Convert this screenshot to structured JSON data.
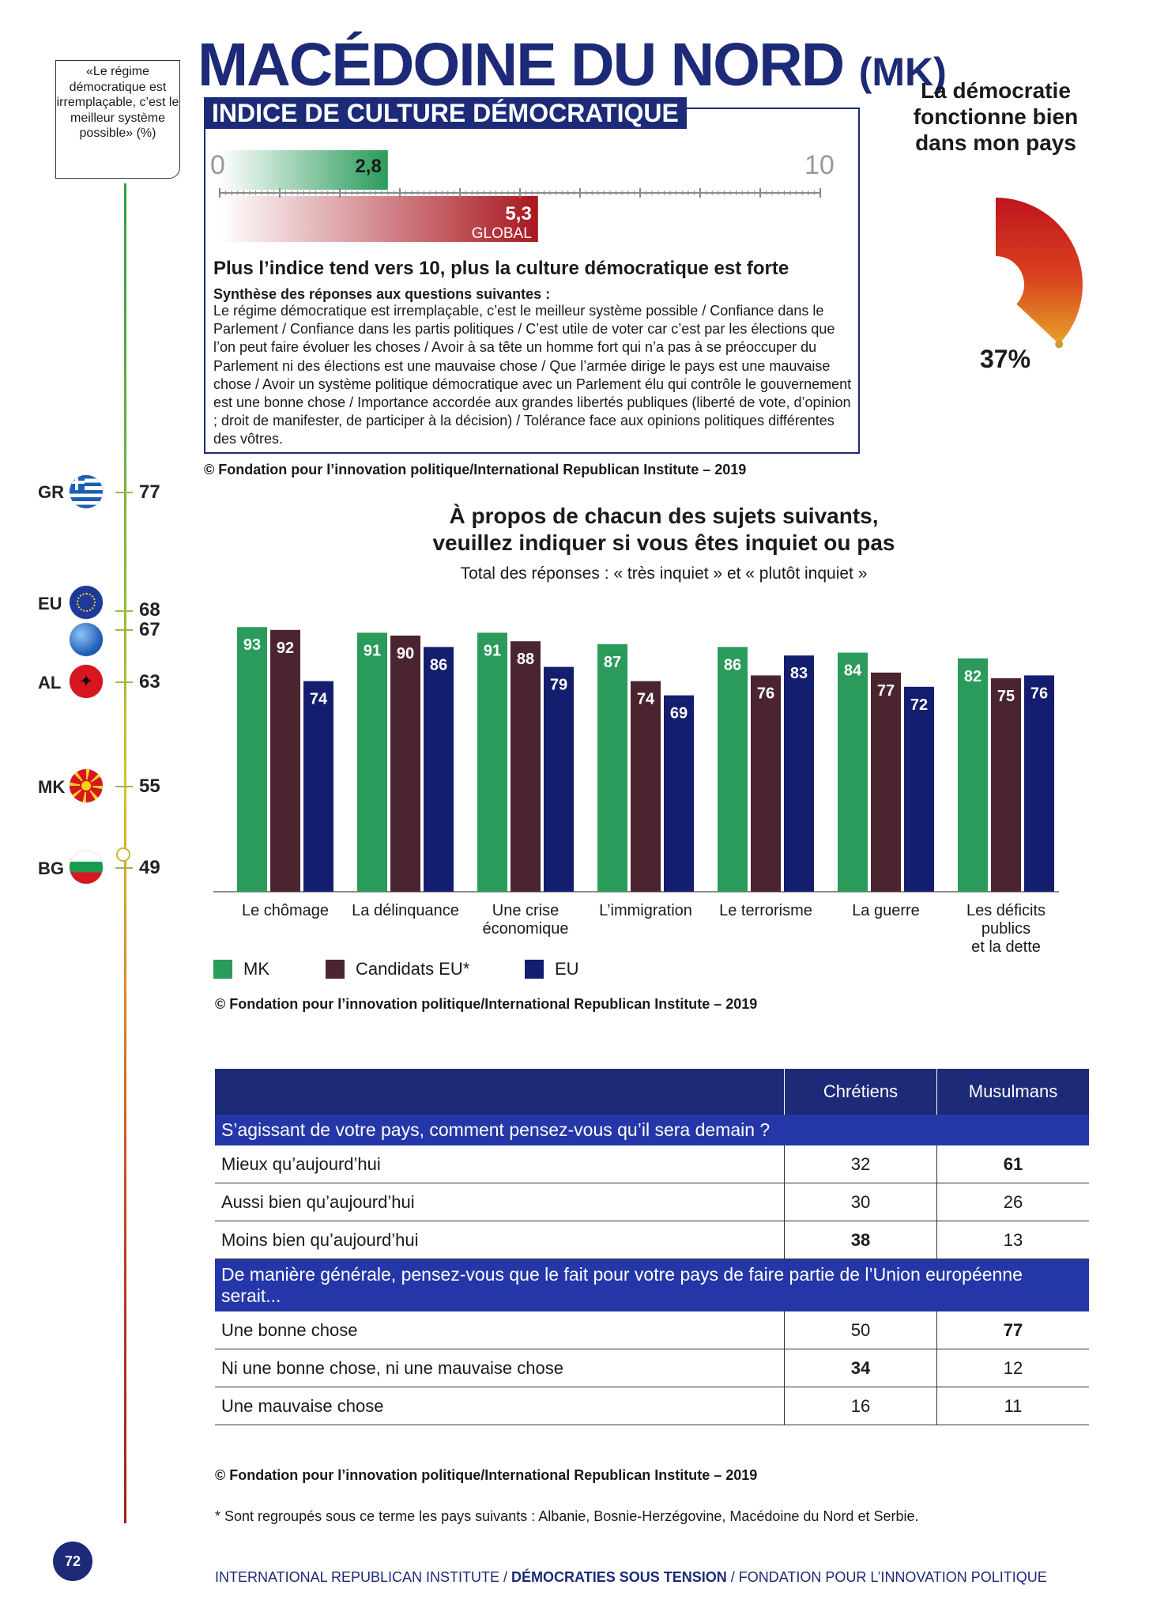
{
  "title": {
    "country": "MACÉDOINE DU NORD",
    "code": "(MK)"
  },
  "index": {
    "banner": "INDICE DE CULTURE DÉMOCRATIQUE",
    "scale_min": "0",
    "scale_max": "10",
    "country_value": "2,8",
    "global_value": "5,3",
    "global_label": "GLOBAL",
    "country_value_num": 2.8,
    "global_value_num": 5.3,
    "description": "Plus l’indice tend vers 10, plus la culture démocratique est forte",
    "synthesis_title": "Synthèse des réponses aux questions suivantes :",
    "synthesis_text": "Le régime démocratique est irremplaçable, c’est le meilleur système possible / Confiance dans le Parlement / Confiance dans les partis politiques / C’est utile de voter car c’est par les élections que l’on peut faire évoluer les choses / Avoir à sa tête un homme fort qui n’a pas à se préoccuper du Parlement ni des élections est une mauvaise chose / Que l’armée dirige le pays est une mauvaise chose / Avoir un système politique démocratique avec un Parlement élu qui contrôle le gouvernement est une bonne chose / Importance accordée aux grandes libertés publiques (liberté de vote, d’opinion ; droit de manifester, de participer à la décision) / Tolérance face aux opinions politiques différentes des vôtres.",
    "copyright": "© Fondation pour l’innovation politique/International Republican Institute – 2019"
  },
  "democracy_works": {
    "label": "La démocratie fonctionne bien dans mon pays",
    "value": "37%",
    "value_num": 37
  },
  "left_scale": {
    "quote": "«Le régime démocratique est irremplaçable, c’est le meilleur système possible» (%)",
    "countries": [
      {
        "code": "GR",
        "value": "77",
        "flag": "greece-flag"
      },
      {
        "code": "EU",
        "value": "68",
        "flag": "eu-flag"
      },
      {
        "code": "",
        "value": "67",
        "flag": "globe-icon"
      },
      {
        "code": "AL",
        "value": "63",
        "flag": "albania-flag"
      },
      {
        "code": "MK",
        "value": "55",
        "flag": "north-macedonia-flag"
      },
      {
        "code": "BG",
        "value": "49",
        "flag": "bulgaria-flag"
      }
    ]
  },
  "chart_data": {
    "type": "bar",
    "title": "À propos de chacun des sujets suivants, veuillez indiquer si vous êtes inquiet ou pas",
    "title_line1": "À propos de chacun des sujets suivants,",
    "title_line2": "veuillez indiquer si vous êtes inquiet ou pas",
    "subtitle": "Total des réponses : « très inquiet » et « plutôt inquiet »",
    "categories": [
      "Le chômage",
      "La délinquance",
      "Une crise économique",
      "L’immigration",
      "Le terrorisme",
      "La guerre",
      "Les déficits publics et la dette"
    ],
    "category_lines": [
      [
        "Le chômage"
      ],
      [
        "La délinquance"
      ],
      [
        "Une crise",
        "économique"
      ],
      [
        "L’immigration"
      ],
      [
        "Le terrorisme"
      ],
      [
        "La guerre"
      ],
      [
        "Les déficits",
        "publics",
        "et la dette"
      ]
    ],
    "series": [
      {
        "name": "MK",
        "color": "#2a9b5b",
        "values": [
          93,
          91,
          91,
          87,
          86,
          84,
          82
        ]
      },
      {
        "name": "Candidats EU*",
        "color": "#4a2530",
        "values": [
          92,
          90,
          88,
          74,
          76,
          77,
          75
        ]
      },
      {
        "name": "EU",
        "color": "#141e6e",
        "values": [
          74,
          86,
          79,
          69,
          83,
          72,
          76
        ]
      }
    ],
    "ylim": [
      0,
      100
    ],
    "legend": "bottom-left",
    "copyright": "© Fondation pour l’innovation politique/International Republican Institute – 2019"
  },
  "table": {
    "columns": [
      "",
      "Chrétiens",
      "Musulmans"
    ],
    "q1": "S’agissant de votre pays, comment pensez-vous qu’il sera demain ?",
    "q1_rows": [
      {
        "label": "Mieux qu’aujourd’hui",
        "chretiens": "32",
        "musulmans": "61",
        "bold": "musulmans"
      },
      {
        "label": "Aussi bien qu’aujourd’hui",
        "chretiens": "30",
        "musulmans": "26",
        "bold": ""
      },
      {
        "label": "Moins bien qu’aujourd’hui",
        "chretiens": "38",
        "musulmans": "13",
        "bold": "chretiens"
      }
    ],
    "q2": "De manière générale, pensez-vous que le fait pour votre pays de faire partie de l’Union européenne serait...",
    "q2_rows": [
      {
        "label": "Une bonne chose",
        "chretiens": "50",
        "musulmans": "77",
        "bold": "musulmans"
      },
      {
        "label": "Ni une bonne chose, ni une mauvaise chose",
        "chretiens": "34",
        "musulmans": "12",
        "bold": "chretiens"
      },
      {
        "label": "Une mauvaise chose",
        "chretiens": "16",
        "musulmans": "11",
        "bold": ""
      }
    ],
    "copyright": "© Fondation pour l’innovation politique/International Republican Institute – 2019"
  },
  "footnote": "* Sont regroupés sous ce terme les pays suivants : Albanie, Bosnie-Herzégovine, Macédoine du Nord et Serbie.",
  "page_number": "72",
  "footer": {
    "part1": "INTERNATIONAL REPUBLICAN INSTITUTE / ",
    "part2": "DÉMOCRATIES SOUS TENSION",
    "part3": " / FONDATION POUR L’INNOVATION POLITIQUE"
  }
}
